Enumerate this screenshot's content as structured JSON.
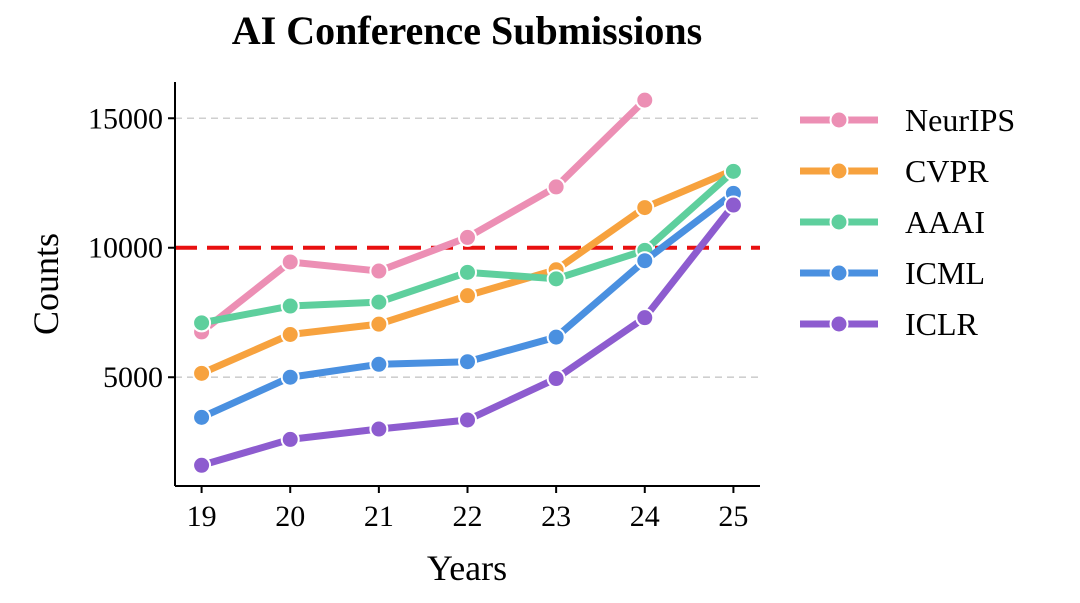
{
  "chart_data": {
    "type": "line",
    "title": "AI Conference Submissions",
    "xlabel": "Years",
    "ylabel": "Counts",
    "x": [
      "19",
      "20",
      "21",
      "22",
      "23",
      "24",
      "25"
    ],
    "xlim": [
      18.7,
      25.3
    ],
    "ylim": [
      800,
      16400
    ],
    "yticks": [
      5000,
      10000,
      15000
    ],
    "grid": "horizontal-dashed",
    "legend_position": "right",
    "reference_line": {
      "y": 10000,
      "color": "#e81010",
      "style": "dashed"
    },
    "series": [
      {
        "name": "NeurIPS",
        "color": "#ec8fb4",
        "x": [
          19,
          20,
          21,
          22,
          23,
          24
        ],
        "values": [
          6750,
          9450,
          9100,
          10400,
          12350,
          15700
        ]
      },
      {
        "name": "CVPR",
        "color": "#f7a23e",
        "x": [
          19,
          20,
          21,
          22,
          23,
          24,
          25
        ],
        "values": [
          5150,
          6650,
          7050,
          8150,
          9150,
          11550,
          13000
        ]
      },
      {
        "name": "AAAI",
        "color": "#5ecf9d",
        "x": [
          19,
          20,
          21,
          22,
          23,
          24,
          25
        ],
        "values": [
          7100,
          7750,
          7900,
          9050,
          8800,
          9900,
          12950
        ]
      },
      {
        "name": "ICML",
        "color": "#4a90e0",
        "x": [
          19,
          20,
          21,
          22,
          23,
          24,
          25
        ],
        "values": [
          3450,
          5000,
          5500,
          5600,
          6550,
          9500,
          12100
        ]
      },
      {
        "name": "ICLR",
        "color": "#8d5ccf",
        "x": [
          19,
          20,
          21,
          22,
          23,
          24,
          25
        ],
        "values": [
          1600,
          2600,
          3000,
          3350,
          4950,
          7300,
          11650
        ]
      }
    ]
  }
}
